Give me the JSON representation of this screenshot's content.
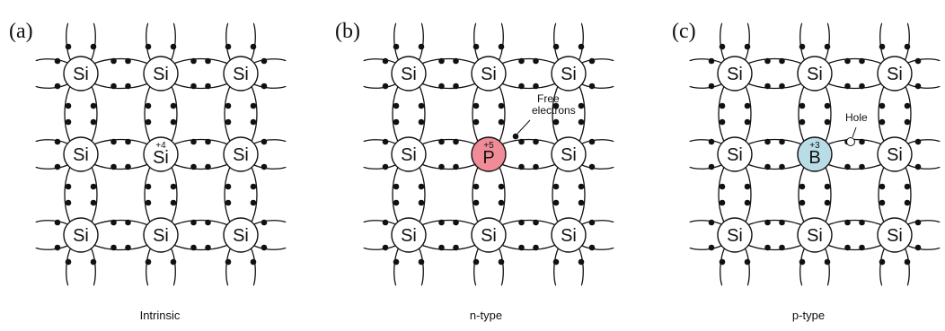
{
  "panels": [
    {
      "label": "(a)",
      "caption": "Intrinsic",
      "atoms": [
        [
          "Si",
          "Si",
          "Si"
        ],
        [
          "Si",
          "Si",
          "Si"
        ],
        [
          "Si",
          "Si",
          "Si"
        ]
      ],
      "dopant": {
        "row": 1,
        "col": 1,
        "symbol": "Si",
        "charge": "+4",
        "fill": "#ffffff",
        "highlighted": false
      },
      "note": null
    },
    {
      "label": "(b)",
      "caption": "n-type",
      "atoms": [
        [
          "Si",
          "Si",
          "Si"
        ],
        [
          "Si",
          "P",
          "Si"
        ],
        [
          "Si",
          "Si",
          "Si"
        ]
      ],
      "dopant": {
        "row": 1,
        "col": 1,
        "symbol": "P",
        "charge": "+5",
        "fill": "#ef8c98",
        "highlighted": true
      },
      "note": {
        "lines": [
          "Free",
          "electrons"
        ],
        "kind": "free-electron"
      }
    },
    {
      "label": "(c)",
      "caption": "p-type",
      "atoms": [
        [
          "Si",
          "Si",
          "Si"
        ],
        [
          "Si",
          "B",
          "Si"
        ],
        [
          "Si",
          "Si",
          "Si"
        ]
      ],
      "dopant": {
        "row": 1,
        "col": 1,
        "symbol": "B",
        "charge": "+3",
        "fill": "#b9dde6",
        "highlighted": true
      },
      "note": {
        "lines": [
          "Hole"
        ],
        "kind": "hole"
      }
    }
  ],
  "colors": {
    "line": "#111111",
    "electron": "#111111",
    "atom_fill": "#ffffff",
    "hole_fill": "#ffffff"
  }
}
